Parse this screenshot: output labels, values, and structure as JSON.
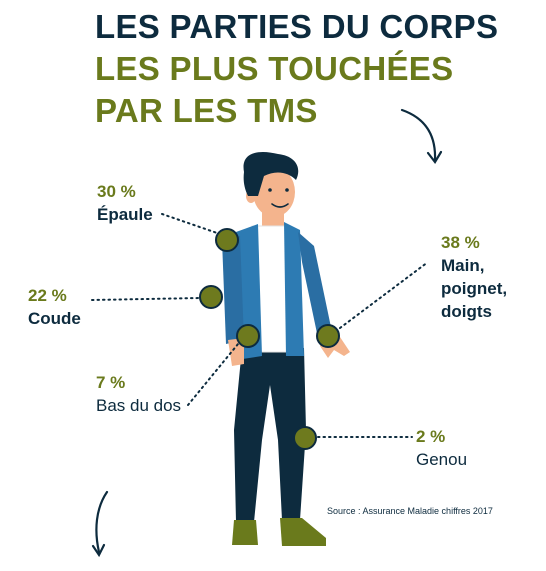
{
  "title": {
    "line1": "LES PARTIES DU CORPS",
    "line2": "LES PLUS TOUCHÉES",
    "line3": "PAR LES TMS"
  },
  "callouts": {
    "epaule": {
      "percent": "30 %",
      "label": "Épaule"
    },
    "coude": {
      "percent": "22 %",
      "label": "Coude"
    },
    "bas_du_dos": {
      "percent": "7 %",
      "label": "Bas du dos"
    },
    "main": {
      "percent": "38 %",
      "label_lines": [
        "Main,",
        "poignet,",
        "doigts"
      ]
    },
    "genou": {
      "percent": "2 %",
      "label": "Genou"
    }
  },
  "source": "Source : Assurance Maladie chiffres 2017",
  "colors": {
    "navy": "#0d2b3e",
    "olive": "#6a7a1c",
    "marker": "#6e7a1e",
    "jacket": "#2d7bb3",
    "skin": "#f4b48d"
  }
}
